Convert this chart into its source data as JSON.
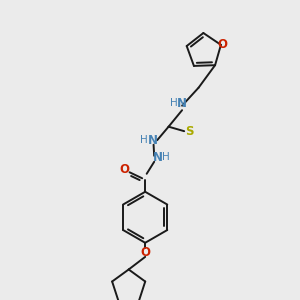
{
  "background_color": "#ebebeb",
  "bond_color": "#1a1a1a",
  "N_color": "#4682B4",
  "O_color": "#cc2200",
  "S_color": "#aaaa00",
  "H_color": "#4682B4",
  "figsize": [
    3.0,
    3.0
  ],
  "dpi": 100,
  "xlim": [
    0,
    10
  ],
  "ylim": [
    0,
    10
  ]
}
